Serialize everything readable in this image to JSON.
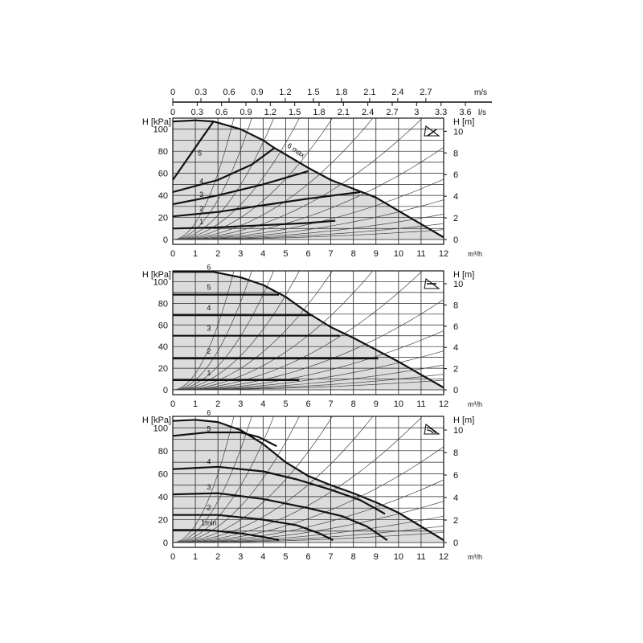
{
  "top_axes": {
    "ms": {
      "unit": "m/s",
      "ticks": [
        "0",
        "0.3",
        "0.6",
        "0.9",
        "1.2",
        "1.5",
        "1.8",
        "2.1",
        "2.4",
        "2.7"
      ]
    },
    "ls": {
      "unit": "l/s",
      "ticks": [
        "0",
        "0.3",
        "0.6",
        "0.9",
        "1.2",
        "1.5",
        "1.8",
        "2.1",
        "2.4",
        "2.7",
        "3",
        "3.3",
        "3.6"
      ]
    }
  },
  "left_unit": "H [kPa]",
  "right_unit": "H [m]",
  "x_unit": "m³/h",
  "x_ticks": [
    "0",
    "1",
    "2",
    "3",
    "4",
    "5",
    "6",
    "7",
    "8",
    "9",
    "10",
    "11",
    "12"
  ],
  "y_kpa_ticks": [
    "0",
    "20",
    "40",
    "60",
    "80",
    "100"
  ],
  "y_m_ticks": [
    "0",
    "2",
    "4",
    "6",
    "8",
    "10"
  ],
  "chart_data": [
    {
      "type": "line",
      "mode": "proportional-pressure",
      "x_unit": "m³/h",
      "y_unit": "kPa",
      "xlim": [
        0,
        12
      ],
      "ylim": [
        0,
        110
      ],
      "grid": true,
      "shaded_area": true,
      "symbol_icon": "proportional-pressure-icon",
      "max_curve": {
        "label": "6 max",
        "points": [
          [
            0,
            107
          ],
          [
            1,
            108
          ],
          [
            1.8,
            107
          ],
          [
            3,
            100
          ],
          [
            4,
            90
          ],
          [
            4.5,
            83
          ],
          [
            6,
            65
          ],
          [
            7,
            54
          ],
          [
            8,
            46
          ],
          [
            9,
            38
          ],
          [
            10,
            26
          ],
          [
            11,
            14
          ],
          [
            12,
            2
          ]
        ]
      },
      "series": [
        {
          "label": "5",
          "points": [
            [
              0,
              54
            ],
            [
              1.8,
              107
            ]
          ]
        },
        {
          "label": "4",
          "points": [
            [
              0,
              43
            ],
            [
              2,
              54
            ],
            [
              3.5,
              68
            ],
            [
              4.5,
              83
            ]
          ]
        },
        {
          "label": "3",
          "points": [
            [
              0,
              32
            ],
            [
              2,
              40
            ],
            [
              4,
              50
            ],
            [
              6,
              62
            ]
          ]
        },
        {
          "label": "2",
          "points": [
            [
              0,
              21
            ],
            [
              2,
              25
            ],
            [
              4,
              31
            ],
            [
              6,
              37
            ],
            [
              8.3,
              43
            ]
          ]
        },
        {
          "label": "1",
          "points": [
            [
              0,
              10
            ],
            [
              2,
              11
            ],
            [
              4,
              13
            ],
            [
              6,
              15
            ],
            [
              7.2,
              17
            ]
          ]
        }
      ]
    },
    {
      "type": "line",
      "mode": "constant-pressure",
      "x_unit": "m³/h",
      "y_unit": "kPa",
      "xlim": [
        0,
        12
      ],
      "ylim": [
        0,
        110
      ],
      "grid": true,
      "shaded_area": true,
      "symbol_icon": "constant-pressure-icon",
      "max_curve": {
        "label": "6",
        "points": [
          [
            0,
            109
          ],
          [
            1.8,
            109
          ],
          [
            3,
            104
          ],
          [
            4,
            97
          ],
          [
            5,
            86
          ],
          [
            6,
            71
          ],
          [
            7,
            58
          ],
          [
            8,
            48
          ],
          [
            9,
            37
          ],
          [
            10,
            26
          ],
          [
            11,
            14
          ],
          [
            12,
            2
          ]
        ]
      },
      "series": [
        {
          "label": "5",
          "points": [
            [
              0,
              88
            ],
            [
              4.7,
              88
            ]
          ]
        },
        {
          "label": "4",
          "points": [
            [
              0,
              69
            ],
            [
              6.2,
              69
            ]
          ]
        },
        {
          "label": "3",
          "points": [
            [
              0,
              50
            ],
            [
              7.4,
              50
            ]
          ]
        },
        {
          "label": "2",
          "points": [
            [
              0,
              29
            ],
            [
              9.1,
              29
            ]
          ]
        },
        {
          "label": "1",
          "points": [
            [
              0,
              9
            ],
            [
              5.6,
              9
            ]
          ]
        }
      ]
    },
    {
      "type": "line",
      "mode": "constant-speed",
      "x_unit": "m³/h",
      "y_unit": "kPa",
      "xlim": [
        0,
        12
      ],
      "ylim": [
        0,
        110
      ],
      "grid": true,
      "shaded_area": true,
      "symbol_icon": "constant-speed-icon",
      "max_curve": {
        "label": "6",
        "points": [
          [
            0,
            106
          ],
          [
            1,
            107
          ],
          [
            2,
            105
          ],
          [
            3,
            98
          ],
          [
            4,
            86
          ],
          [
            5,
            70
          ],
          [
            6,
            58
          ],
          [
            7,
            50
          ],
          [
            8,
            43
          ],
          [
            9,
            35
          ],
          [
            10,
            26
          ],
          [
            11,
            14
          ],
          [
            12,
            2
          ]
        ]
      },
      "series": [
        {
          "label": "5",
          "points": [
            [
              0,
              93
            ],
            [
              1.5,
              96
            ],
            [
              3,
              96
            ],
            [
              3.8,
              92
            ],
            [
              4.6,
              84
            ]
          ]
        },
        {
          "label": "4",
          "points": [
            [
              0,
              64
            ],
            [
              2,
              66
            ],
            [
              4,
              62
            ],
            [
              5.5,
              55
            ],
            [
              7,
              46
            ],
            [
              8.3,
              37
            ],
            [
              9.4,
              25
            ]
          ]
        },
        {
          "label": "3",
          "points": [
            [
              0,
              42
            ],
            [
              2,
              43
            ],
            [
              4,
              38
            ],
            [
              6,
              30
            ],
            [
              7.5,
              23
            ],
            [
              8.6,
              14
            ],
            [
              9.5,
              2
            ]
          ]
        },
        {
          "label": "2",
          "points": [
            [
              0,
              24
            ],
            [
              2,
              24
            ],
            [
              4,
              20
            ],
            [
              5.5,
              15
            ],
            [
              6.5,
              8
            ],
            [
              7.1,
              2
            ]
          ]
        },
        {
          "label": "1min",
          "points": [
            [
              0,
              11
            ],
            [
              1.5,
              11
            ],
            [
              3,
              8
            ],
            [
              4,
              5
            ],
            [
              4.7,
              2
            ]
          ]
        }
      ]
    }
  ]
}
